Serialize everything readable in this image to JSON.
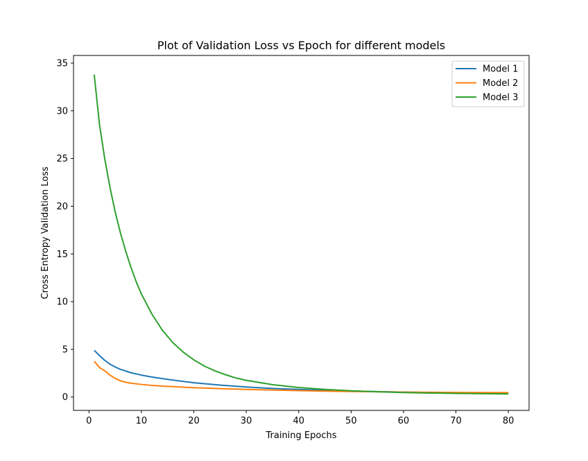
{
  "chart_data": {
    "type": "line",
    "title": "Plot of Validation Loss vs Epoch for different models",
    "xlabel": "Training Epochs",
    "ylabel": "Cross Entropy Validation Loss",
    "xlim": [
      -2.95,
      83.95
    ],
    "ylim": [
      -1.4,
      35.8
    ],
    "xticks": [
      0,
      10,
      20,
      30,
      40,
      50,
      60,
      70,
      80
    ],
    "yticks": [
      0,
      5,
      10,
      15,
      20,
      25,
      30,
      35
    ],
    "grid": false,
    "legend_position": "top-right",
    "series": [
      {
        "name": "Model 1",
        "color": "#1f77b4",
        "x": [
          1,
          2,
          3,
          4,
          5,
          6,
          8,
          10,
          12,
          15,
          20,
          25,
          30,
          35,
          40,
          45,
          50,
          55,
          60,
          65,
          70,
          75,
          80
        ],
        "y": [
          4.9,
          4.35,
          3.85,
          3.45,
          3.15,
          2.9,
          2.55,
          2.3,
          2.1,
          1.85,
          1.5,
          1.25,
          1.05,
          0.9,
          0.8,
          0.7,
          0.63,
          0.57,
          0.52,
          0.48,
          0.45,
          0.42,
          0.4
        ]
      },
      {
        "name": "Model 2",
        "color": "#ff7f0e",
        "x": [
          1,
          2,
          3,
          4,
          5,
          6,
          7,
          8,
          10,
          12,
          15,
          20,
          25,
          30,
          35,
          40,
          45,
          50,
          55,
          60,
          65,
          70,
          75,
          80
        ],
        "y": [
          3.75,
          3.1,
          2.75,
          2.3,
          1.95,
          1.7,
          1.55,
          1.45,
          1.32,
          1.22,
          1.12,
          0.98,
          0.88,
          0.8,
          0.73,
          0.67,
          0.62,
          0.58,
          0.55,
          0.52,
          0.5,
          0.48,
          0.47,
          0.46
        ]
      },
      {
        "name": "Model 3",
        "color": "#2ca02c",
        "x": [
          1,
          2,
          3,
          4,
          5,
          6,
          7,
          8,
          9,
          10,
          12,
          14,
          16,
          18,
          20,
          22,
          24,
          26,
          28,
          30,
          35,
          40,
          45,
          50,
          55,
          60,
          65,
          70,
          75,
          80
        ],
        "y": [
          33.8,
          28.6,
          25.0,
          22.0,
          19.4,
          17.2,
          15.3,
          13.6,
          12.1,
          10.8,
          8.7,
          7.0,
          5.7,
          4.7,
          3.9,
          3.25,
          2.75,
          2.35,
          2.0,
          1.75,
          1.3,
          1.0,
          0.8,
          0.65,
          0.55,
          0.47,
          0.42,
          0.38,
          0.35,
          0.33
        ]
      }
    ]
  }
}
